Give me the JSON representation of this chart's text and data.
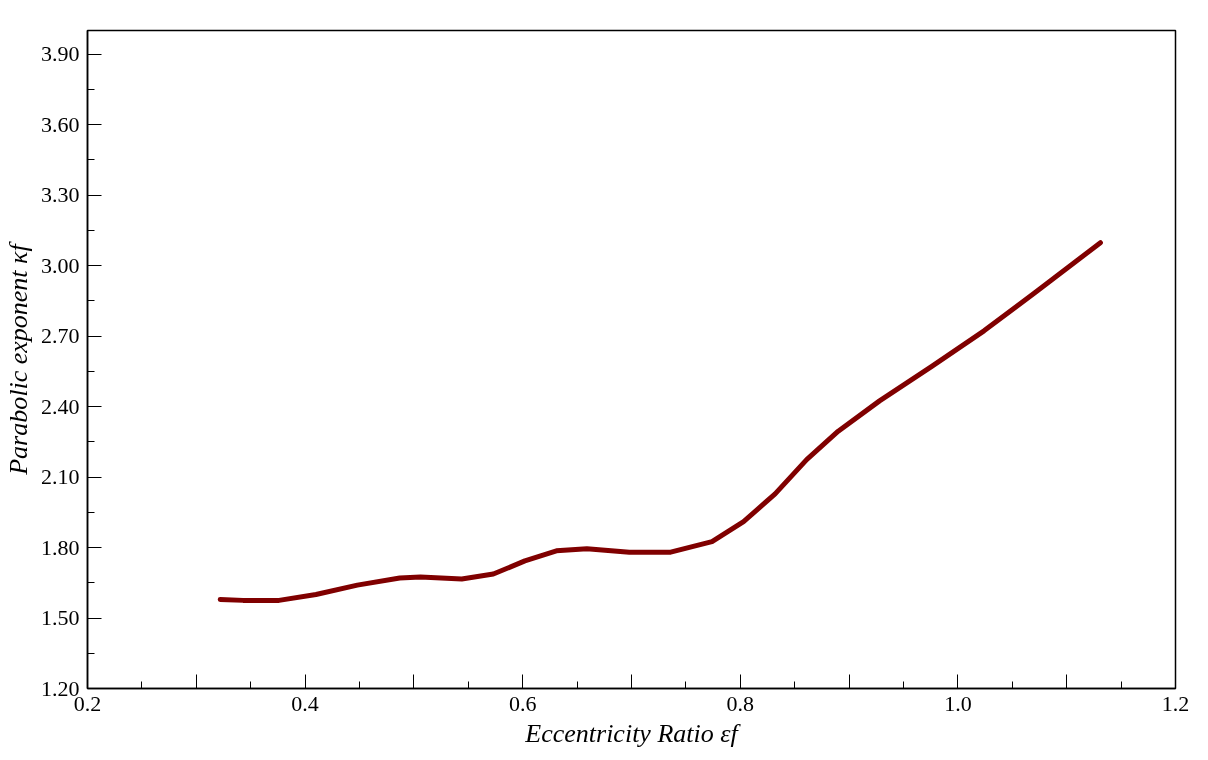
{
  "chart_data": {
    "type": "line",
    "xlabel": "Eccentricity Ratio εf",
    "ylabel": "Parabolic exponent κf",
    "x": [
      0.322,
      0.343,
      0.376,
      0.41,
      0.448,
      0.487,
      0.506,
      0.544,
      0.573,
      0.602,
      0.631,
      0.659,
      0.698,
      0.736,
      0.774,
      0.803,
      0.832,
      0.861,
      0.89,
      0.928,
      0.976,
      1.024,
      1.071,
      1.131
    ],
    "series": [
      {
        "color": "#800000",
        "values": [
          1.579,
          1.575,
          1.575,
          1.6,
          1.64,
          1.67,
          1.674,
          1.666,
          1.687,
          1.743,
          1.786,
          1.795,
          1.78,
          1.78,
          1.825,
          1.91,
          2.028,
          2.174,
          2.295,
          2.424,
          2.571,
          2.722,
          2.885,
          3.097
        ]
      }
    ],
    "xlim": [
      0.2,
      1.2
    ],
    "xticks": [
      "0.2",
      {
        "value": 0.3,
        "label": null
      },
      0.4,
      {
        "value": 0.5,
        "label": null
      },
      0.6,
      {
        "value": 0.7,
        "label": null
      },
      0.8,
      {
        "value": 0.9,
        "label": null
      },
      "1.0",
      {
        "value": 1.1,
        "label": null
      },
      1.2
    ],
    "ylim": [
      1.2,
      4.0
    ],
    "yticks": [
      {
        "value": 1.2,
        "label": "1.20"
      },
      {
        "value": 1.5,
        "label": "1.50"
      },
      {
        "value": 1.8,
        "label": "1.80"
      },
      {
        "value": 2.1,
        "label": "2.10"
      },
      {
        "value": 2.4,
        "label": "2.40"
      },
      {
        "value": 2.7,
        "label": "2.70"
      },
      {
        "value": 3.0,
        "label": "3.00"
      },
      {
        "value": 3.3,
        "label": "3.30"
      },
      {
        "value": 3.6,
        "label": "3.60"
      },
      {
        "value": 3.9,
        "label": "3.90"
      }
    ],
    "grid": false,
    "marker": "none",
    "line_style": "solid"
  }
}
